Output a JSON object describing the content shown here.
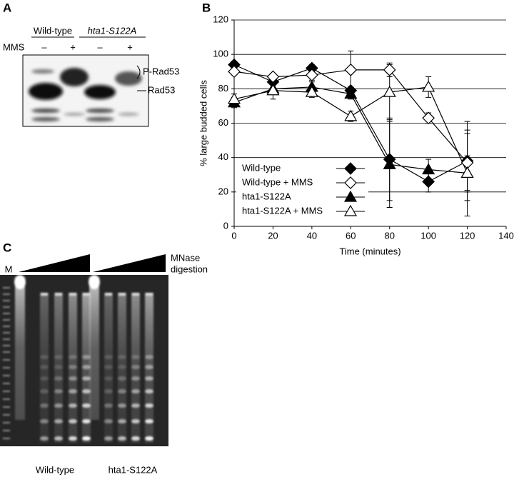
{
  "panels": {
    "A": {
      "label": "A",
      "lanes": [
        "Wild-type",
        "hta1-S122A"
      ],
      "treatment": "MMS",
      "mms": [
        "–",
        "+",
        "–",
        "+"
      ],
      "bands": [
        "P-Rad53",
        "Rad53"
      ]
    },
    "C": {
      "label": "C",
      "marker": "M",
      "gradient": [
        "MNase",
        "digestion"
      ],
      "lanes": [
        "Wild-type",
        "hta1-S122A"
      ]
    }
  },
  "chart_data": {
    "type": "line",
    "panel_label": "B",
    "xlabel": "Time (minutes)",
    "ylabel": "% large budded cells",
    "x": [
      0,
      20,
      40,
      60,
      80,
      100,
      120
    ],
    "xlim": [
      0,
      140
    ],
    "xticks": [
      0,
      20,
      40,
      60,
      80,
      100,
      120,
      140
    ],
    "ylim": [
      0,
      120
    ],
    "yticks": [
      0,
      20,
      40,
      60,
      80,
      100,
      120
    ],
    "grid": true,
    "legend": "lower-left",
    "series": [
      {
        "name": "Wild-type",
        "color": "#000000",
        "marker": "diamond",
        "filled": true,
        "values": [
          94,
          84,
          92,
          79,
          39,
          26,
          38
        ],
        "errors": [
          2,
          3,
          2,
          2,
          24,
          6,
          23
        ]
      },
      {
        "name": "Wild-type + MMS",
        "color": "#000000",
        "marker": "diamond",
        "filled": false,
        "values": [
          90,
          87,
          88,
          91,
          91,
          63,
          37
        ],
        "errors": [
          2,
          2,
          3,
          11,
          4,
          3,
          17
        ]
      },
      {
        "name": "hta1-S122A",
        "color": "#000000",
        "marker": "triangle",
        "filled": true,
        "values": [
          72,
          80,
          81,
          77,
          36,
          33,
          31
        ],
        "errors": [
          3,
          3,
          3,
          3,
          25,
          6,
          25
        ]
      },
      {
        "name": "hta1-S122A + MMS",
        "color": "#000000",
        "marker": "triangle",
        "filled": false,
        "values": [
          74,
          79,
          78,
          64,
          78,
          81,
          31
        ],
        "errors": [
          3,
          5,
          3,
          3,
          16,
          6,
          10
        ]
      }
    ]
  }
}
